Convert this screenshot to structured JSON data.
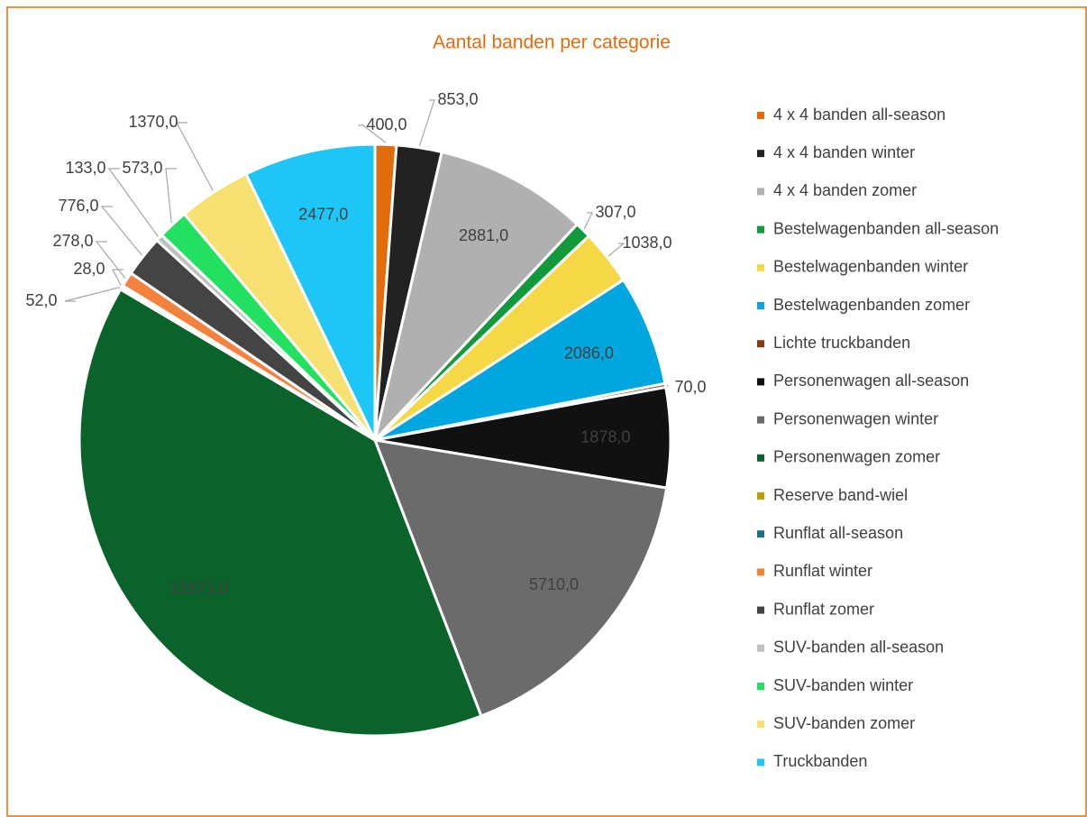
{
  "chart_data": {
    "type": "pie",
    "title": "Aantal banden per categorie",
    "categories": [
      "4 x 4 banden all-season",
      "4 x 4 banden winter",
      "4 x 4 banden zomer",
      "Bestelwagenbanden all-season",
      "Bestelwagenbanden winter",
      "Bestelwagenbanden zomer",
      "Lichte truckbanden",
      "Personenwagen all-season",
      "Personenwagen winter",
      "Personenwagen zomer",
      "Reserve band-wiel",
      "Runflat all-season",
      "Runflat winter",
      "Runflat zomer",
      "SUV-banden all-season",
      "SUV-banden winter",
      "SUV-banden zomer",
      "Truckbanden"
    ],
    "values": [
      400,
      853,
      2881,
      307,
      1038,
      2086,
      70,
      1878,
      5710,
      13573,
      52,
      28,
      278,
      776,
      133,
      573,
      1370,
      2477
    ],
    "value_labels": [
      "400,0",
      "853,0",
      "2881,0",
      "307,0",
      "1038,0",
      "2086,0",
      "70,0",
      "1878,0",
      "5710,0",
      "13573,0",
      "52,0",
      "28,0",
      "278,0",
      "776,0",
      "133,0",
      "573,0",
      "1370,0",
      "2477,0"
    ],
    "colors": [
      "#e36c0a",
      "#222222",
      "#b0b0b0",
      "#109a3c",
      "#f6d846",
      "#00a6e0",
      "#8b3a0f",
      "#111111",
      "#6b6b6b",
      "#0b632c",
      "#b8a000",
      "#1f6e8c",
      "#f5823c",
      "#444444",
      "#c0c0c0",
      "#22e060",
      "#f6e070",
      "#1ec6f8"
    ],
    "legend": "right"
  }
}
